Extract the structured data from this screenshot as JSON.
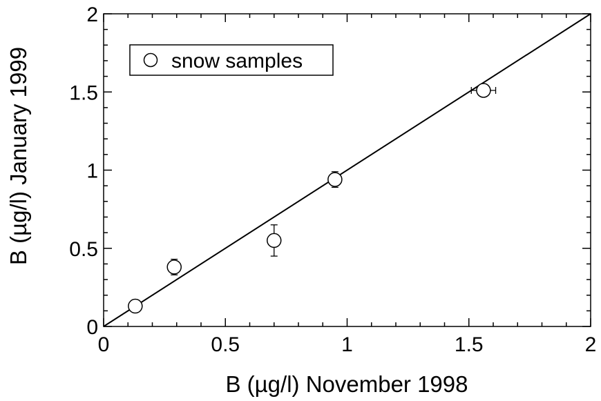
{
  "chart_data": {
    "type": "scatter",
    "title": "",
    "xlabel": "B (µg/l) November 1998",
    "ylabel": "B (µg/l) January 1999",
    "xlim": [
      0,
      2
    ],
    "ylim": [
      0,
      2
    ],
    "xticks": [
      "0",
      "0.5",
      "1",
      "1.5",
      "2"
    ],
    "yticks": [
      "0",
      "0.5",
      "1",
      "1.5",
      "2"
    ],
    "grid": false,
    "legend": {
      "placement": "top-left",
      "entries": [
        "snow samples"
      ]
    },
    "series": [
      {
        "name": "snow samples",
        "marker": "open-circle",
        "points": [
          {
            "x": 0.13,
            "y": 0.13,
            "yerr": 0.02,
            "xerr": 0.0
          },
          {
            "x": 0.29,
            "y": 0.38,
            "yerr": 0.05,
            "xerr": 0.0
          },
          {
            "x": 0.7,
            "y": 0.55,
            "yerr": 0.1,
            "xerr": 0.0
          },
          {
            "x": 0.95,
            "y": 0.94,
            "yerr": 0.05,
            "xerr": 0.0
          },
          {
            "x": 1.56,
            "y": 1.51,
            "yerr": 0.0,
            "xerr": 0.05
          }
        ]
      }
    ],
    "reference_line": {
      "type": "y=x",
      "from": [
        0,
        0
      ],
      "to": [
        2,
        2
      ]
    }
  }
}
